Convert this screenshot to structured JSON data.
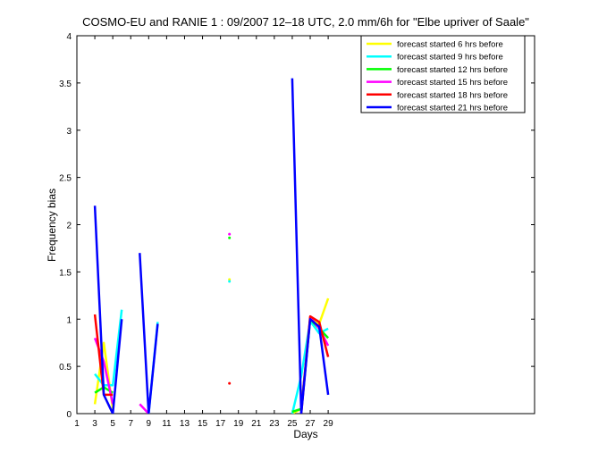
{
  "chart_data": {
    "type": "line",
    "title": "COSMO-EU and RANIE 1 : 09/2007 12–18 UTC, 2.0 mm/6h for \"Elbe upriver of Saale\"",
    "xlabel": "Days",
    "ylabel": "Frequency bias",
    "xlim": [
      1,
      52
    ],
    "ylim": [
      0,
      4
    ],
    "xticks": [
      "1",
      "3",
      "5",
      "7",
      "9",
      "11",
      "13",
      "15",
      "17",
      "19",
      "21",
      "23",
      "25",
      "27",
      "29"
    ],
    "yticks": [
      "0",
      "0.5",
      "1",
      "1.5",
      "2",
      "2.5",
      "3",
      "3.5",
      "4"
    ],
    "grid": false,
    "legend_position": "top-right",
    "series": [
      {
        "name": "forecast started 6 hrs before",
        "color": "#ffff00",
        "x": [
          3,
          4,
          5,
          9,
          18,
          25,
          26,
          27,
          28,
          29
        ],
        "y": [
          0.1,
          0.75,
          0.05,
          0.0,
          1.42,
          0.0,
          0.05,
          1.0,
          0.95,
          1.22
        ]
      },
      {
        "name": "forecast started 9 hrs before",
        "color": "#00ffff",
        "x": [
          3,
          4,
          5,
          6,
          9,
          10,
          18,
          25,
          26,
          27,
          28,
          29
        ],
        "y": [
          0.42,
          0.3,
          0.3,
          1.1,
          0.0,
          0.97,
          1.4,
          0.0,
          0.4,
          0.98,
          0.85,
          0.9
        ]
      },
      {
        "name": "forecast started 12 hrs before",
        "color": "#00ff00",
        "x": [
          3,
          4,
          5,
          18,
          25,
          26,
          27,
          28,
          29
        ],
        "y": [
          0.22,
          0.28,
          0.22,
          1.86,
          0.02,
          0.05,
          1.0,
          0.9,
          0.8
        ]
      },
      {
        "name": "forecast started 15 hrs before",
        "color": "#ff00ff",
        "x": [
          3,
          4,
          5,
          8,
          9,
          18,
          26,
          27,
          28,
          29
        ],
        "y": [
          0.8,
          0.55,
          0.1,
          0.1,
          0.0,
          1.9,
          0.03,
          1.02,
          0.9,
          0.72
        ]
      },
      {
        "name": "forecast started 18 hrs before",
        "color": "#ff0000",
        "x": [
          3,
          4,
          5,
          18,
          26,
          27,
          28,
          29
        ],
        "y": [
          1.05,
          0.2,
          0.2,
          0.32,
          0.0,
          1.03,
          0.97,
          0.6
        ]
      },
      {
        "name": "forecast started 21 hrs before",
        "color": "#0000ff",
        "x": [
          3,
          4,
          5,
          6,
          8,
          9,
          10,
          25,
          26,
          27,
          28,
          29
        ],
        "y": [
          2.2,
          0.2,
          0.0,
          1.0,
          1.7,
          0.0,
          0.95,
          3.55,
          0.0,
          1.0,
          0.92,
          0.2
        ]
      }
    ]
  }
}
